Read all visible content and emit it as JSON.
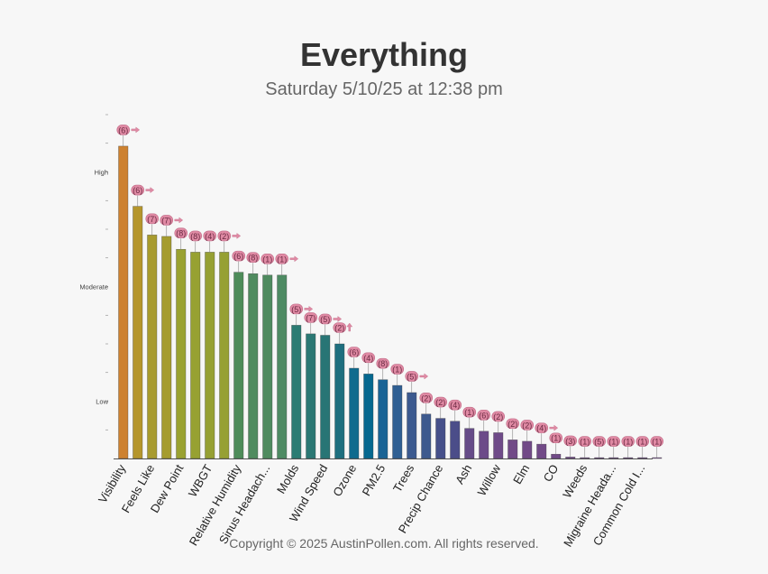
{
  "header": {
    "title": "Everything",
    "subtitle": "Saturday 5/10/25 at 12:38 pm"
  },
  "footer": {
    "copyright": "Copyright © 2025 AustinPollen.com.  All rights reserved."
  },
  "chart_data": {
    "type": "bar",
    "title": "Everything",
    "subtitle": "Saturday 5/10/25 at 12:38 pm",
    "ylim": [
      0,
      12
    ],
    "y_ticks": [
      {
        "value": 2,
        "label": "Low"
      },
      {
        "value": 6,
        "label": "Moderate"
      },
      {
        "value": 10,
        "label": "High"
      }
    ],
    "y_minor_ticks": [
      1,
      3,
      4,
      5,
      7,
      8,
      9,
      11,
      12
    ],
    "categories": [
      "Visibility",
      "",
      "Feels Like",
      "",
      "Dew Point",
      "",
      "WBGT",
      "",
      "Relative Humidity",
      "",
      "Sinus Headach...",
      "",
      "Molds",
      "",
      "Wind Speed",
      "",
      "Ozone",
      "",
      "PM2.5",
      "",
      "Trees",
      "",
      "Precip Chance",
      "",
      "Ash",
      "",
      "Willow",
      "",
      "Elm",
      "",
      "CO",
      "",
      "Weeds",
      "",
      "Migraine Heada...",
      "",
      "Common Cold I...",
      ""
    ],
    "x_labels": [
      "Visibility",
      "Feels Like",
      "Dew Point",
      "WBGT",
      "Relative Humidity",
      "Sinus Headach...",
      "Molds",
      "Wind Speed",
      "Ozone",
      "PM2.5",
      "Trees",
      "Precip Chance",
      "Ash",
      "Willow",
      "Elm",
      "CO",
      "Weeds",
      "Migraine Heada...",
      "Common Cold I..."
    ],
    "values": [
      10.9,
      8.8,
      7.8,
      7.75,
      7.3,
      7.2,
      7.2,
      7.2,
      6.5,
      6.45,
      6.4,
      6.4,
      4.65,
      4.35,
      4.3,
      4.0,
      3.15,
      2.95,
      2.75,
      2.55,
      2.3,
      1.55,
      1.4,
      1.3,
      1.05,
      0.95,
      0.9,
      0.65,
      0.6,
      0.5,
      0.15,
      0.05,
      0.03,
      0.03,
      0.03,
      0.03,
      0.03,
      0.03
    ],
    "badges": [
      "6",
      "6",
      "7",
      "7",
      "8",
      "8",
      "4",
      "2",
      "6",
      "8",
      "1",
      "1",
      "5",
      "7",
      "5",
      "2",
      "6",
      "4",
      "8",
      "1",
      "5",
      "2",
      "2",
      "4",
      "1",
      "6",
      "2",
      "2",
      "2",
      "4",
      "1",
      "3",
      "1",
      "5",
      "1",
      "1",
      "1",
      "1"
    ],
    "trend": [
      "right",
      "right",
      "",
      "right",
      "",
      "",
      "",
      "right",
      "",
      "",
      "",
      "right",
      "right",
      "",
      "right",
      "up",
      "",
      "",
      "",
      "",
      "right",
      "",
      "",
      "",
      "",
      "",
      "",
      "",
      "",
      "right",
      "",
      "",
      "",
      "",
      "",
      "",
      "",
      ""
    ],
    "bar_colors": [
      "#cd8130",
      "#b5962c",
      "#a89b2e",
      "#a59c2e",
      "#9aa231",
      "#97a132",
      "#96a033",
      "#96a033",
      "#4e8c5a",
      "#4f8b5f",
      "#4f8b5f",
      "#4e8b63",
      "#2b7c73",
      "#2b7874",
      "#287575",
      "#1e6f7f",
      "#0f6b8e",
      "#05688f",
      "#196395",
      "#2f5f93",
      "#3c5a8f",
      "#3e5a8e",
      "#46508a",
      "#4b4d89",
      "#664c88",
      "#6c4b89",
      "#6f4b89",
      "#714a87",
      "#714a87",
      "#714a87",
      "#714a87",
      "#714a87",
      "#714a87",
      "#714a87",
      "#714a87",
      "#714a87",
      "#714a87",
      "#714a87"
    ],
    "badge_color": "#e08aa4",
    "grid": false,
    "legend": "none"
  }
}
